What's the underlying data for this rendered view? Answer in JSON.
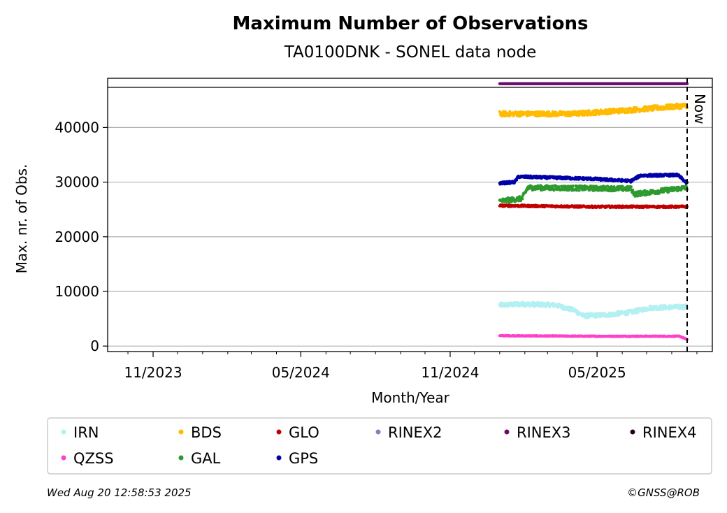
{
  "chart_data": {
    "type": "scatter",
    "title": "Maximum Number of Observations",
    "subtitle": "TA0100DNK - SONEL data node",
    "xlabel": "Month/Year",
    "ylabel": "Max. nr. of Obs.",
    "x_ticks": [
      "11/2023",
      "05/2024",
      "11/2024",
      "05/2025"
    ],
    "y_ticks": [
      0,
      10000,
      20000,
      30000,
      40000
    ],
    "ylim": [
      -1000,
      49000
    ],
    "xlim": [
      "2023-09-06",
      "2025-09-20"
    ],
    "data_start": "2025-01-01",
    "data_end": "2025-08-20",
    "now_label": "Now",
    "now_date": "2025-08-20",
    "grid": "horizontal",
    "legend_location": "below plot",
    "series": [
      {
        "name": "IRN",
        "color": "#b2f0f2",
        "baseline": [
          [
            0,
            7500
          ],
          [
            0.12,
            7700
          ],
          [
            0.3,
            7500
          ],
          [
            0.4,
            6500
          ],
          [
            0.45,
            5500
          ],
          [
            0.6,
            5800
          ],
          [
            0.7,
            6200
          ],
          [
            0.8,
            7000
          ],
          [
            1,
            7200
          ]
        ],
        "noise": 800
      },
      {
        "name": "QZSS",
        "color": "#ff40c8",
        "baseline": [
          [
            0,
            1900
          ],
          [
            0.5,
            1800
          ],
          [
            0.96,
            1800
          ],
          [
            1,
            1200
          ]
        ],
        "noise": 150
      },
      {
        "name": "BDS",
        "color": "#ffbb00",
        "baseline": [
          [
            0,
            42500
          ],
          [
            0.4,
            42500
          ],
          [
            0.7,
            43200
          ],
          [
            1,
            44000
          ]
        ],
        "noise": 900
      },
      {
        "name": "GAL",
        "color": "#2e9a2e",
        "baseline": [
          [
            0,
            26500
          ],
          [
            0.12,
            27000
          ],
          [
            0.15,
            29000
          ],
          [
            0.7,
            28800
          ],
          [
            0.72,
            27800
          ],
          [
            1,
            29000
          ]
        ],
        "noise": 900
      },
      {
        "name": "GLO",
        "color": "#c00000",
        "baseline": [
          [
            0,
            25700
          ],
          [
            0.5,
            25500
          ],
          [
            1,
            25500
          ]
        ],
        "noise": 350
      },
      {
        "name": "GPS",
        "color": "#0000a8",
        "baseline": [
          [
            0,
            29800
          ],
          [
            0.08,
            30000
          ],
          [
            0.1,
            31000
          ],
          [
            0.5,
            30600
          ],
          [
            0.7,
            30200
          ],
          [
            0.75,
            31200
          ],
          [
            0.95,
            31300
          ],
          [
            1,
            29800
          ]
        ],
        "noise": 450
      },
      {
        "name": "RINEX2",
        "color": "#8080c0",
        "baseline": [],
        "noise": 0
      },
      {
        "name": "RINEX3",
        "color": "#6b0a6e",
        "baseline": [
          [
            0,
            48000
          ],
          [
            1,
            48000
          ]
        ],
        "noise": 0
      },
      {
        "name": "RINEX4",
        "color": "#200020",
        "baseline": [],
        "noise": 0
      }
    ]
  },
  "legend": {
    "items": [
      {
        "name": "IRN",
        "color": "#b2f0f2"
      },
      {
        "name": "BDS",
        "color": "#ffbb00"
      },
      {
        "name": "GLO",
        "color": "#c00000"
      },
      {
        "name": "RINEX2",
        "color": "#8080c0"
      },
      {
        "name": "RINEX3",
        "color": "#6b0a6e"
      },
      {
        "name": "RINEX4",
        "color": "#200020"
      },
      {
        "name": "QZSS",
        "color": "#ff40c8"
      },
      {
        "name": "GAL",
        "color": "#2e9a2e"
      },
      {
        "name": "GPS",
        "color": "#0000a8"
      }
    ]
  },
  "footer": {
    "timestamp": "Wed Aug 20 12:58:53 2025",
    "credit": "©GNSS@ROB"
  }
}
